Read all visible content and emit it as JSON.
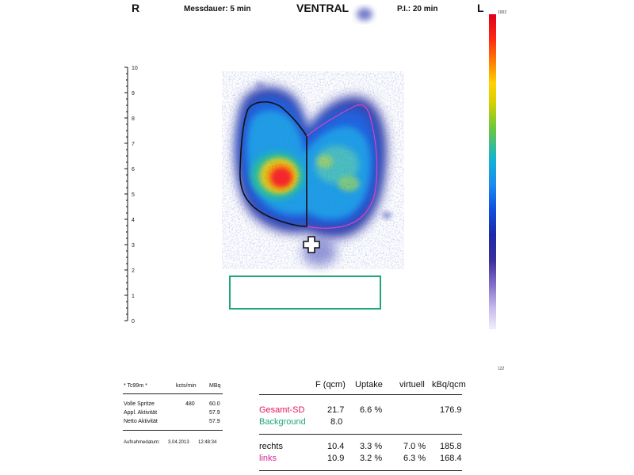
{
  "header": {
    "side_right": "R",
    "measure_duration": "Messdauer: 5 min",
    "view": "VENTRAL",
    "pi": "P.I.: 20 min",
    "side_left": "L"
  },
  "colorbar": {
    "max_label": "1002",
    "min_label": "122"
  },
  "ruler": {
    "ticks": [
      "10",
      "9",
      "8",
      "7",
      "6",
      "5",
      "4",
      "3",
      "2",
      "1",
      "0"
    ]
  },
  "colors": {
    "roi_right": "#111111",
    "roi_left": "#e040c0",
    "background_roi": "#1fa77a",
    "gesamt": "#e4175a",
    "links": "#d22a9a"
  },
  "isotope_panel": {
    "isotope": "* Tc99m *",
    "col_kcts": "kcts/min",
    "col_mbq": "MBq",
    "rows": [
      {
        "label": "Volle Spritze",
        "kcts": "480",
        "mbq": "60.0"
      },
      {
        "label": "Appl. Aktivität",
        "kcts": "",
        "mbq": "57.9"
      },
      {
        "label": "Netto Aktivität",
        "kcts": "",
        "mbq": "57.9"
      }
    ],
    "date_label": "Aufnahmedatum:",
    "date_value": "3.04.2013",
    "time_value": "12:48:34"
  },
  "results": {
    "headers": [
      "F (qcm)",
      "Uptake",
      "virtuell",
      "kBq/qcm"
    ],
    "rows": [
      {
        "label": "Gesamt-SD",
        "f": "21.7",
        "uptake": "6.6 %",
        "virtuell": "",
        "kbq": "176.9"
      },
      {
        "label": "Background",
        "f": "8.0",
        "uptake": "",
        "virtuell": "",
        "kbq": ""
      },
      {
        "label": "rechts",
        "f": "10.4",
        "uptake": "3.3 %",
        "virtuell": "7.0 %",
        "kbq": "185.8"
      },
      {
        "label": "links",
        "f": "10.9",
        "uptake": "3.2 %",
        "virtuell": "6.3 %",
        "kbq": "168.4"
      }
    ]
  }
}
